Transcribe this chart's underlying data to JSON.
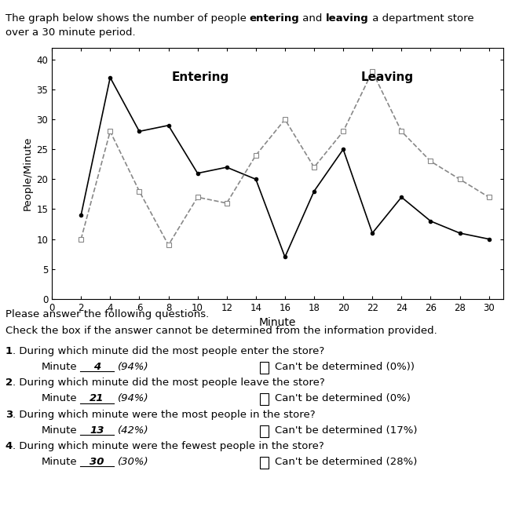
{
  "entering_x": [
    2,
    4,
    6,
    8,
    10,
    12,
    14,
    16,
    18,
    20,
    22,
    24,
    26,
    28,
    30
  ],
  "entering_y": [
    14,
    37,
    28,
    29,
    21,
    22,
    20,
    7,
    18,
    25,
    11,
    17,
    13,
    11,
    10
  ],
  "leaving_x": [
    2,
    4,
    6,
    8,
    10,
    12,
    14,
    16,
    18,
    20,
    22,
    24,
    26,
    28,
    30
  ],
  "leaving_y": [
    10,
    28,
    18,
    9,
    17,
    16,
    24,
    30,
    22,
    28,
    38,
    28,
    23,
    20,
    17
  ],
  "xlabel": "Minute",
  "ylabel": "People/Minute",
  "xlim": [
    0,
    31
  ],
  "ylim": [
    0,
    42
  ],
  "xticks": [
    0,
    2,
    4,
    6,
    8,
    10,
    12,
    14,
    16,
    18,
    20,
    22,
    24,
    26,
    28,
    30
  ],
  "yticks": [
    0,
    5,
    10,
    15,
    20,
    25,
    30,
    35,
    40
  ],
  "entering_label": "Entering",
  "leaving_label": "Leaving",
  "line_color": "#000000",
  "dash_color": "#888888",
  "bg_color": "#ffffff",
  "title_prefix": "The graph below shows the number of people ",
  "title_bold1": "entering",
  "title_mid": " and ",
  "title_bold2": "leaving",
  "title_suffix": " a department store",
  "title_line2": "over a 30 minute period.",
  "instr1": "Please answer the following questions.",
  "instr2": "Check the box if the answer cannot be determined from the information provided.",
  "questions": [
    {
      "num": "1",
      "text": ". During which minute did the most people enter the store?",
      "answer_value": "4",
      "answer_pct": "(94%)",
      "cant_pct": "(0%))"
    },
    {
      "num": "2",
      "text": ". During which minute did the most people leave the store?",
      "answer_value": "21",
      "answer_pct": "(94%)",
      "cant_pct": "(0%)"
    },
    {
      "num": "3",
      "text": ". During which minute were the most people in the store?",
      "answer_value": "13",
      "answer_pct": "(42%)",
      "cant_pct": "(17%)"
    },
    {
      "num": "4",
      "text": ". During which minute were the fewest people in the store?",
      "answer_value": "30",
      "answer_pct": "(30%)",
      "cant_pct": "(28%)"
    }
  ]
}
